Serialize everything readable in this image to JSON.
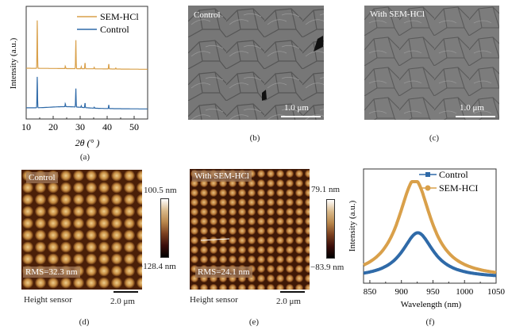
{
  "panels": {
    "a": {
      "letter": "(a)"
    },
    "b": {
      "letter": "(b)",
      "label": "Control",
      "scale": "1.0 μm"
    },
    "c": {
      "letter": "(c)",
      "label": "With SEM-HCl",
      "scale": "1.0 μm"
    },
    "d": {
      "letter": "(d)",
      "label": "Control",
      "rms": "RMS=32.3 nm",
      "cbar_max": "100.5 nm",
      "cbar_min": "−128.4 nm",
      "sensor": "Height sensor",
      "scale": "2.0 μm"
    },
    "e": {
      "letter": "(e)",
      "label": "With SEM-HCl",
      "rms": "RMS=24.1 nm",
      "cbar_max": "79.1 nm",
      "cbar_min": "−83.9 nm",
      "sensor": "Height sensor",
      "scale": "2.0 μm"
    },
    "f": {
      "letter": "(f)"
    }
  },
  "chart_data": [
    {
      "type": "line",
      "panel": "a",
      "title": "",
      "xlabel": "2θ (° )",
      "ylabel": "Intensity (a.u.)",
      "xlim": [
        10,
        55
      ],
      "xticks": [
        10,
        20,
        30,
        40,
        50
      ],
      "legend": "top-right",
      "series": [
        {
          "name": "SEM-HCl",
          "color": "#d9a04a",
          "offset": 1.0,
          "peaks": [
            [
              14.1,
              1.0
            ],
            [
              24.5,
              0.05
            ],
            [
              28.4,
              0.58
            ],
            [
              30.4,
              0.04
            ],
            [
              31.8,
              0.12
            ],
            [
              35.2,
              0.03
            ],
            [
              40.6,
              0.1
            ],
            [
              43.2,
              0.02
            ]
          ]
        },
        {
          "name": "Control",
          "color": "#2f6aa8",
          "offset": 0.0,
          "peaks": [
            [
              14.1,
              0.62
            ],
            [
              24.5,
              0.06
            ],
            [
              28.4,
              0.36
            ],
            [
              30.4,
              0.03
            ],
            [
              31.8,
              0.09
            ],
            [
              35.2,
              0.02
            ],
            [
              40.6,
              0.07
            ]
          ]
        }
      ]
    },
    {
      "type": "line",
      "panel": "f",
      "title": "",
      "xlabel": "Wavelength (nm)",
      "ylabel": "Intensity (a.u.)",
      "xlim": [
        840,
        1050
      ],
      "xticks": [
        850,
        900,
        950,
        1000,
        1050
      ],
      "legend": "top-right",
      "series": [
        {
          "name": "Control",
          "color": "#2f6aa8",
          "marker": "square",
          "peak_x": 926,
          "peak_y": 0.46,
          "width": 38
        },
        {
          "name": "SEM-HCI",
          "color": "#d9a04a",
          "marker": "circle",
          "peak_x": 921,
          "peak_y": 1.0,
          "width": 40
        }
      ]
    }
  ]
}
